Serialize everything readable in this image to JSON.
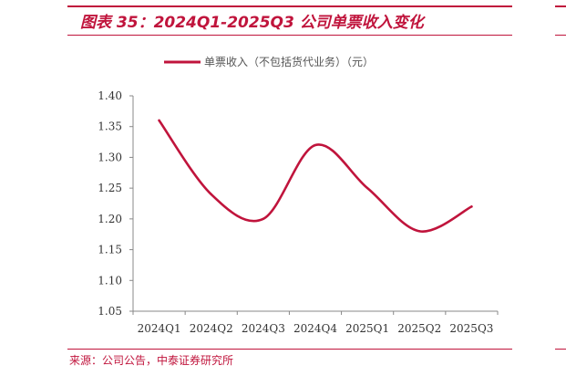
{
  "figure": {
    "title": "图表 35：2024Q1-2025Q3 公司单票收入变化",
    "source": "来源：公司公告，中泰证券研究所"
  },
  "colors": {
    "accent": "#c0143c",
    "series_line": "#c0143c",
    "axis": "#888888"
  },
  "chart_data": {
    "type": "line",
    "categories": [
      "2024Q1",
      "2024Q2",
      "2024Q3",
      "2024Q4",
      "2025Q1",
      "2025Q2",
      "2025Q3"
    ],
    "series": [
      {
        "name": "单票收入（不包括货代业务）（元）",
        "values": [
          1.36,
          1.24,
          1.2,
          1.32,
          1.25,
          1.18,
          1.22
        ]
      }
    ],
    "yticks": [
      "1.05",
      "1.10",
      "1.15",
      "1.20",
      "1.25",
      "1.30",
      "1.35",
      "1.40"
    ],
    "ylim": [
      1.05,
      1.4
    ],
    "grid": false,
    "legend_position": "top-center"
  }
}
